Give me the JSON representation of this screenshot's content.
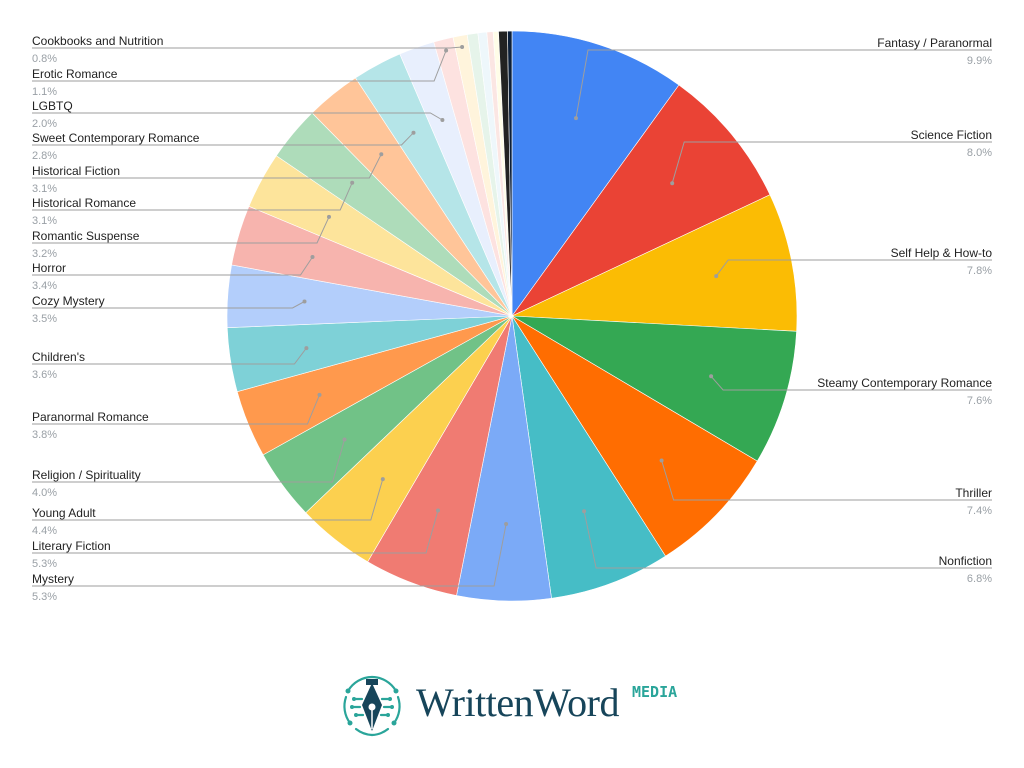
{
  "chart_data": {
    "type": "pie",
    "title": "",
    "label_format": "name over percent",
    "slices": [
      {
        "label": "Fantasy / Paranormal",
        "value": 9.9,
        "display": "9.9%",
        "color": "#4285f4",
        "side": "right"
      },
      {
        "label": "Science Fiction",
        "value": 8.0,
        "display": "8.0%",
        "color": "#ea4335",
        "side": "right"
      },
      {
        "label": "Self Help & How-to",
        "value": 7.8,
        "display": "7.8%",
        "color": "#fbbc04",
        "side": "right"
      },
      {
        "label": "Steamy Contemporary Romance",
        "value": 7.6,
        "display": "7.6%",
        "color": "#34a853",
        "side": "right"
      },
      {
        "label": "Thriller",
        "value": 7.4,
        "display": "7.4%",
        "color": "#ff6d01",
        "side": "right"
      },
      {
        "label": "Nonfiction",
        "value": 6.8,
        "display": "6.8%",
        "color": "#46bdc6",
        "side": "right"
      },
      {
        "label": "Mystery",
        "value": 5.3,
        "display": "5.3%",
        "color": "#7baaf7",
        "side": "left"
      },
      {
        "label": "Literary Fiction",
        "value": 5.3,
        "display": "5.3%",
        "color": "#f07b72",
        "side": "left"
      },
      {
        "label": "Young Adult",
        "value": 4.4,
        "display": "4.4%",
        "color": "#fcd04f",
        "side": "left"
      },
      {
        "label": "Religion / Spirituality",
        "value": 4.0,
        "display": "4.0%",
        "color": "#71c287",
        "side": "left"
      },
      {
        "label": "Paranormal Romance",
        "value": 3.8,
        "display": "3.8%",
        "color": "#ff994d",
        "side": "left"
      },
      {
        "label": "Children's",
        "value": 3.6,
        "display": "3.6%",
        "color": "#7ed1d7",
        "side": "left"
      },
      {
        "label": "Cozy Mystery",
        "value": 3.5,
        "display": "3.5%",
        "color": "#b3cefb",
        "side": "left"
      },
      {
        "label": "Horror",
        "value": 3.4,
        "display": "3.4%",
        "color": "#f7b4ae",
        "side": "left"
      },
      {
        "label": "Romantic Suspense",
        "value": 3.2,
        "display": "3.2%",
        "color": "#fde49b",
        "side": "left"
      },
      {
        "label": "Historical Romance",
        "value": 3.1,
        "display": "3.1%",
        "color": "#aedcba",
        "side": "left"
      },
      {
        "label": "Historical Fiction",
        "value": 3.1,
        "display": "3.1%",
        "color": "#ffc599",
        "side": "left"
      },
      {
        "label": "Sweet Contemporary Romance",
        "value": 2.8,
        "display": "2.8%",
        "color": "#b5e5e8",
        "side": "left"
      },
      {
        "label": "LGBTQ",
        "value": 2.0,
        "display": "2.0%",
        "color": "#e8effd",
        "side": "left"
      },
      {
        "label": "Erotic Romance",
        "value": 1.1,
        "display": "1.1%",
        "color": "#fde2e0",
        "side": "left"
      },
      {
        "label": "Cookbooks and Nutrition",
        "value": 0.8,
        "display": "0.8%",
        "color": "#fff4dc",
        "side": "left"
      },
      {
        "label": "",
        "value": 0.6,
        "display": "",
        "color": "#e6f4ea",
        "side": "none"
      },
      {
        "label": "",
        "value": 0.5,
        "display": "",
        "color": "#eef7fb",
        "side": "none"
      },
      {
        "label": "",
        "value": 0.35,
        "display": "",
        "color": "#fbe6e3",
        "side": "none"
      },
      {
        "label": "",
        "value": 0.3,
        "display": "",
        "color": "#fffde8",
        "side": "none"
      },
      {
        "label": "",
        "value": 0.5,
        "display": "",
        "color": "#222222",
        "side": "none"
      },
      {
        "label": "",
        "value": 0.25,
        "display": "",
        "color": "#0b1f3a",
        "side": "none"
      }
    ]
  },
  "logo": {
    "wordmark": "WrittenWord",
    "suffix": "MEDIA",
    "colors": {
      "wordmark": "#17455a",
      "accent": "#2aa59a"
    },
    "icon": "pen-nib-circuit-icon"
  }
}
